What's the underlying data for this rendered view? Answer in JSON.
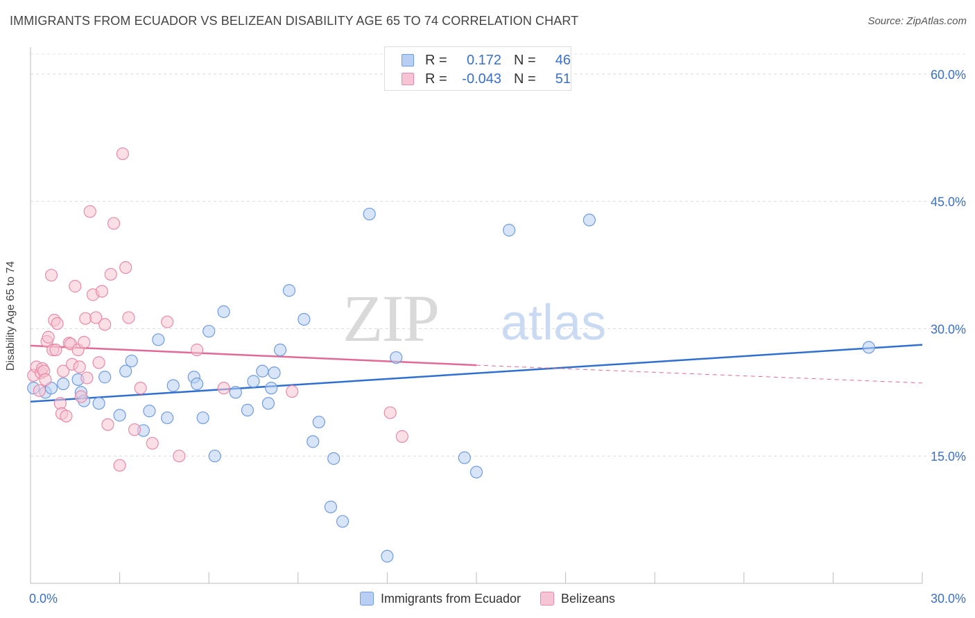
{
  "title": "IMMIGRANTS FROM ECUADOR VS BELIZEAN DISABILITY AGE 65 TO 74 CORRELATION CHART",
  "source": "Source: ZipAtlas.com",
  "watermark": {
    "zip": "ZIP",
    "atlas": "atlas"
  },
  "legend_top": [
    {
      "r_label": "R =",
      "r_value": "0.172",
      "n_label": "N =",
      "n_value": "46"
    },
    {
      "r_label": "R =",
      "r_value": "-0.043",
      "n_label": "N =",
      "n_value": "51"
    }
  ],
  "legend_bottom": [
    {
      "label": "Immigrants from Ecuador"
    },
    {
      "label": "Belizeans"
    }
  ],
  "chart_data": {
    "type": "scatter",
    "title": "IMMIGRANTS FROM ECUADOR VS BELIZEAN DISABILITY AGE 65 TO 74 CORRELATION CHART",
    "xlabel": "",
    "ylabel": "Disability Age 65 to 74",
    "xlim": [
      0,
      30
    ],
    "ylim": [
      0,
      63
    ],
    "x_tick_labels": [
      "0.0%",
      "30.0%"
    ],
    "y_ticks": [
      15,
      30,
      45,
      60
    ],
    "y_tick_labels": [
      "15.0%",
      "30.0%",
      "45.0%",
      "60.0%"
    ],
    "grid": true,
    "legend_position": "top-center",
    "series": [
      {
        "name": "Immigrants from Ecuador",
        "color": "#6f9be0",
        "fill": "#b8cff3",
        "x": [
          0.1,
          0.5,
          0.7,
          1.1,
          1.6,
          1.7,
          1.8,
          2.3,
          2.5,
          3.0,
          3.2,
          3.4,
          3.8,
          4.0,
          4.3,
          4.6,
          4.8,
          5.5,
          5.6,
          5.8,
          6.0,
          6.2,
          6.5,
          6.9,
          7.3,
          7.5,
          7.8,
          8.0,
          8.1,
          8.2,
          8.4,
          8.7,
          9.2,
          9.5,
          9.7,
          10.1,
          10.2,
          10.5,
          11.4,
          12.0,
          12.3,
          14.6,
          15.0,
          16.1,
          18.8,
          28.2
        ],
        "y": [
          23.0,
          22.5,
          23.0,
          23.5,
          24.0,
          22.5,
          21.5,
          21.2,
          24.3,
          19.8,
          25.0,
          26.2,
          18.0,
          20.3,
          28.7,
          19.5,
          23.3,
          24.3,
          23.5,
          19.5,
          29.7,
          15.0,
          32.0,
          22.5,
          20.4,
          23.8,
          25.0,
          21.2,
          23.0,
          24.8,
          27.5,
          34.5,
          31.1,
          16.7,
          19.0,
          9.0,
          14.7,
          7.3,
          43.5,
          3.2,
          26.6,
          14.8,
          13.1,
          41.6,
          42.8,
          27.8
        ]
      },
      {
        "name": "Belizeans",
        "color": "#e88aa6",
        "fill": "#f6c4d4",
        "x": [
          0.1,
          0.2,
          0.3,
          0.35,
          0.4,
          0.45,
          0.5,
          0.55,
          0.6,
          0.7,
          0.75,
          0.8,
          0.85,
          0.9,
          1.0,
          1.05,
          1.1,
          1.2,
          1.3,
          1.35,
          1.4,
          1.5,
          1.6,
          1.65,
          1.7,
          1.8,
          1.85,
          1.9,
          2.0,
          2.1,
          2.2,
          2.3,
          2.4,
          2.5,
          2.6,
          2.7,
          2.8,
          3.0,
          3.1,
          3.2,
          3.3,
          3.5,
          3.7,
          4.1,
          4.6,
          5.0,
          5.6,
          6.5,
          8.8,
          12.1,
          12.5
        ],
        "y": [
          24.5,
          25.5,
          22.7,
          24.8,
          25.3,
          25.0,
          24.0,
          28.5,
          29.0,
          36.3,
          27.5,
          31.0,
          27.5,
          30.6,
          21.2,
          20.0,
          25.0,
          19.7,
          28.3,
          28.2,
          25.8,
          35.0,
          27.5,
          25.5,
          22.0,
          28.4,
          31.2,
          24.2,
          43.8,
          34.0,
          31.3,
          26.0,
          34.4,
          30.5,
          18.7,
          36.4,
          42.4,
          13.9,
          50.6,
          37.2,
          31.3,
          18.1,
          23.0,
          16.5,
          30.8,
          15.0,
          27.5,
          23.0,
          22.6,
          20.1,
          17.3
        ]
      }
    ],
    "trend_lines": [
      {
        "name": "Immigrants from Ecuador",
        "color": "#2f6fd0",
        "x": [
          0,
          30
        ],
        "y": [
          21.4,
          28.1
        ],
        "dashed_extension": false
      },
      {
        "name": "Belizeans",
        "color": "#e06a95",
        "x": [
          0,
          15
        ],
        "y": [
          28.0,
          25.7
        ],
        "dashed_to": [
          30,
          23.6
        ]
      }
    ]
  }
}
